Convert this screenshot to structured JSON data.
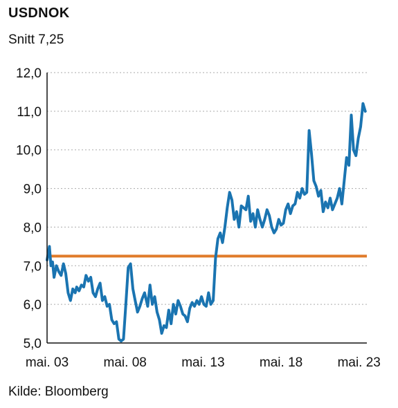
{
  "chart_data": {
    "type": "line",
    "title": "USDNOK",
    "subtitle": "Snitt 7,25",
    "source": "Kilde: Bloomberg",
    "xlabel": "",
    "ylabel": "",
    "xlim": [
      2003.0,
      2023.5
    ],
    "ylim": [
      5.0,
      12.0
    ],
    "x_ticks": [
      {
        "value": 2003.0,
        "label": "mai. 03"
      },
      {
        "value": 2008.0,
        "label": "mai. 08"
      },
      {
        "value": 2013.0,
        "label": "mai. 13"
      },
      {
        "value": 2018.0,
        "label": "mai. 18"
      },
      {
        "value": 2023.0,
        "label": "mai. 23"
      }
    ],
    "y_ticks": [
      {
        "value": 5.0,
        "label": "5,0"
      },
      {
        "value": 6.0,
        "label": "6,0"
      },
      {
        "value": 7.0,
        "label": "7,0"
      },
      {
        "value": 8.0,
        "label": "8,0"
      },
      {
        "value": 9.0,
        "label": "9,0"
      },
      {
        "value": 10.0,
        "label": "10,0"
      },
      {
        "value": 11.0,
        "label": "11,0"
      },
      {
        "value": 12.0,
        "label": "12,0"
      }
    ],
    "grid": "horizontal dotted",
    "average": 7.25,
    "colors": {
      "series": "#1a74b1",
      "average": "#e07b2a",
      "grid": "#aaaaaa",
      "axis": "#111111"
    },
    "series": [
      {
        "x": [
          2003.0,
          2003.15,
          2003.25,
          2003.35,
          2003.45,
          2003.6,
          2003.75,
          2003.9,
          2004.05,
          2004.2,
          2004.35,
          2004.5,
          2004.65,
          2004.8,
          2004.9,
          2005.05,
          2005.2,
          2005.35,
          2005.5,
          2005.65,
          2005.8,
          2005.95,
          2006.1,
          2006.25,
          2006.4,
          2006.55,
          2006.7,
          2006.85,
          2007.0,
          2007.15,
          2007.3,
          2007.45,
          2007.6,
          2007.75,
          2007.9,
          2008.05,
          2008.2,
          2008.35,
          2008.5,
          2008.65,
          2008.8,
          2008.95,
          2009.1,
          2009.25,
          2009.45,
          2009.6,
          2009.75,
          2009.9,
          2010.05,
          2010.2,
          2010.35,
          2010.5,
          2010.65,
          2010.8,
          2010.95,
          2011.1,
          2011.25,
          2011.4,
          2011.55,
          2011.7,
          2011.85,
          2012.0,
          2012.15,
          2012.3,
          2012.45,
          2012.6,
          2012.75,
          2012.9,
          2013.05,
          2013.2,
          2013.35,
          2013.5,
          2013.65,
          2013.8,
          2013.95,
          2014.1,
          2014.25,
          2014.4,
          2014.55,
          2014.7,
          2014.85,
          2015.0,
          2015.15,
          2015.3,
          2015.45,
          2015.6,
          2015.75,
          2015.9,
          2016.05,
          2016.2,
          2016.35,
          2016.5,
          2016.65,
          2016.8,
          2016.95,
          2017.1,
          2017.25,
          2017.4,
          2017.55,
          2017.7,
          2017.85,
          2018.0,
          2018.15,
          2018.3,
          2018.45,
          2018.6,
          2018.75,
          2018.9,
          2019.05,
          2019.2,
          2019.35,
          2019.5,
          2019.65,
          2019.8,
          2019.95,
          2020.1,
          2020.25,
          2020.4,
          2020.55,
          2020.7,
          2020.85,
          2021.0,
          2021.15,
          2021.3,
          2021.45,
          2021.6,
          2021.75,
          2021.9,
          2022.05,
          2022.2,
          2022.35,
          2022.5,
          2022.65,
          2022.8,
          2022.95,
          2023.1,
          2023.25,
          2023.4
        ],
        "values": [
          7.15,
          7.5,
          7.0,
          7.1,
          6.7,
          7.0,
          6.85,
          6.75,
          7.05,
          6.8,
          6.3,
          6.1,
          6.4,
          6.3,
          6.45,
          6.35,
          6.5,
          6.45,
          6.75,
          6.6,
          6.7,
          6.3,
          6.2,
          6.4,
          6.55,
          6.1,
          6.2,
          5.95,
          6.0,
          5.6,
          5.5,
          5.55,
          5.1,
          5.05,
          5.1,
          6.0,
          6.95,
          7.05,
          6.4,
          6.1,
          5.8,
          5.95,
          6.15,
          6.3,
          5.95,
          6.5,
          6.0,
          6.2,
          5.8,
          5.6,
          5.25,
          5.45,
          5.4,
          5.85,
          5.5,
          6.0,
          5.75,
          6.1,
          5.95,
          5.75,
          5.7,
          5.55,
          5.9,
          6.05,
          5.95,
          6.1,
          6.0,
          6.2,
          6.0,
          5.95,
          6.3,
          6.0,
          6.1,
          7.2,
          7.7,
          7.85,
          7.6,
          8.0,
          8.5,
          8.9,
          8.7,
          8.2,
          8.4,
          8.0,
          8.55,
          8.5,
          8.45,
          8.8,
          8.15,
          8.35,
          8.0,
          8.45,
          8.2,
          8.0,
          8.2,
          8.45,
          8.3,
          8.0,
          7.85,
          7.95,
          8.2,
          8.05,
          8.1,
          8.45,
          8.6,
          8.35,
          8.55,
          8.6,
          8.9,
          8.75,
          9.0,
          8.85,
          8.9,
          10.5,
          9.9,
          9.2,
          9.05,
          8.8,
          8.95,
          8.4,
          8.65,
          8.5,
          8.75,
          8.45,
          8.6,
          8.75,
          9.0,
          8.6,
          9.2,
          9.8,
          9.6,
          10.9,
          10.0,
          9.85,
          10.3,
          10.6,
          11.2,
          11.0
        ]
      }
    ]
  }
}
